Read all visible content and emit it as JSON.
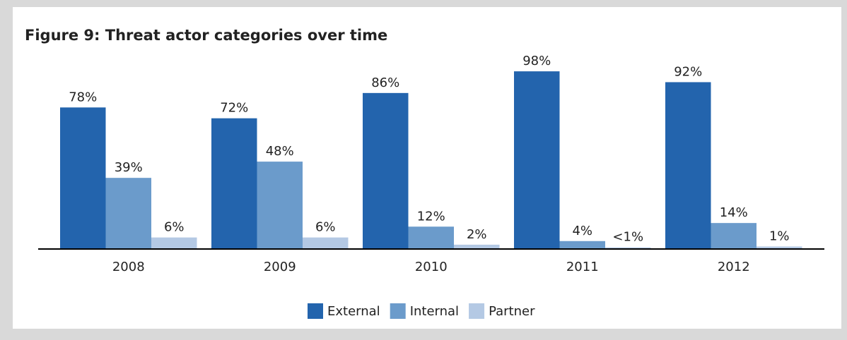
{
  "chart_data": {
    "type": "bar",
    "title": "Figure 9: Threat actor categories over time",
    "categories": [
      "2008",
      "2009",
      "2010",
      "2011",
      "2012"
    ],
    "series": [
      {
        "name": "External",
        "color": "#2364ad",
        "values": [
          78,
          72,
          86,
          98,
          92
        ],
        "value_labels": [
          "78%",
          "72%",
          "86%",
          "98%",
          "92%"
        ]
      },
      {
        "name": "Internal",
        "color": "#6b9bcb",
        "values": [
          39,
          48,
          12,
          4,
          14
        ],
        "value_labels": [
          "39%",
          "48%",
          "12%",
          "4%",
          "14%"
        ]
      },
      {
        "name": "Partner",
        "color": "#b4c9e4",
        "values": [
          6,
          6,
          2,
          0.5,
          1
        ],
        "value_labels": [
          "6%",
          "6%",
          "2%",
          "<1%",
          "1%"
        ]
      }
    ],
    "legend": "bottom"
  }
}
